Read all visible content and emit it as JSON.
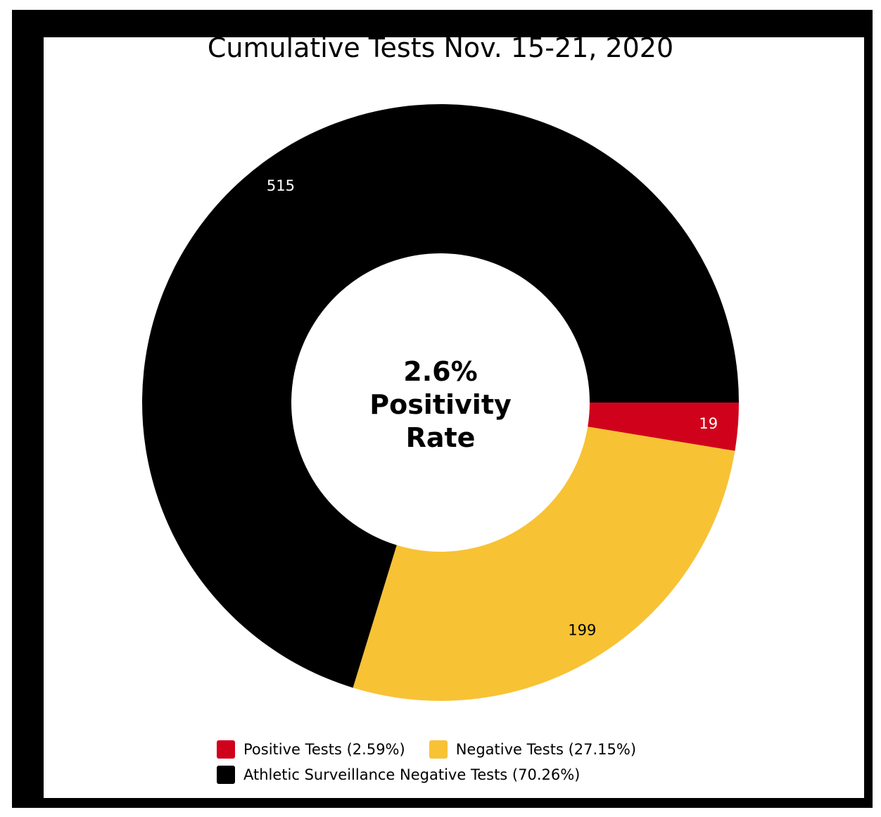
{
  "chart_data": {
    "type": "pie",
    "donut": true,
    "title": "Cumulative Tests Nov. 15-21, 2020",
    "center_label": [
      "2.6%",
      "Positivity",
      "Rate"
    ],
    "slices": [
      {
        "label": "Positive Tests (2.59%)",
        "value": 19,
        "percent": 2.59,
        "color": "#d0021b",
        "label_color": "#ffffff"
      },
      {
        "label": "Negative Tests (27.15%)",
        "value": 199,
        "percent": 27.15,
        "color": "#f8c235",
        "label_color": "#000000"
      },
      {
        "label": "Athletic Surveillance Negative Tests (70.26%)",
        "value": 515,
        "percent": 70.26,
        "color": "#000000",
        "label_color": "#ffffff"
      }
    ],
    "start_direction": "east",
    "direction": "clockwise",
    "legend_placement": "bottom"
  }
}
